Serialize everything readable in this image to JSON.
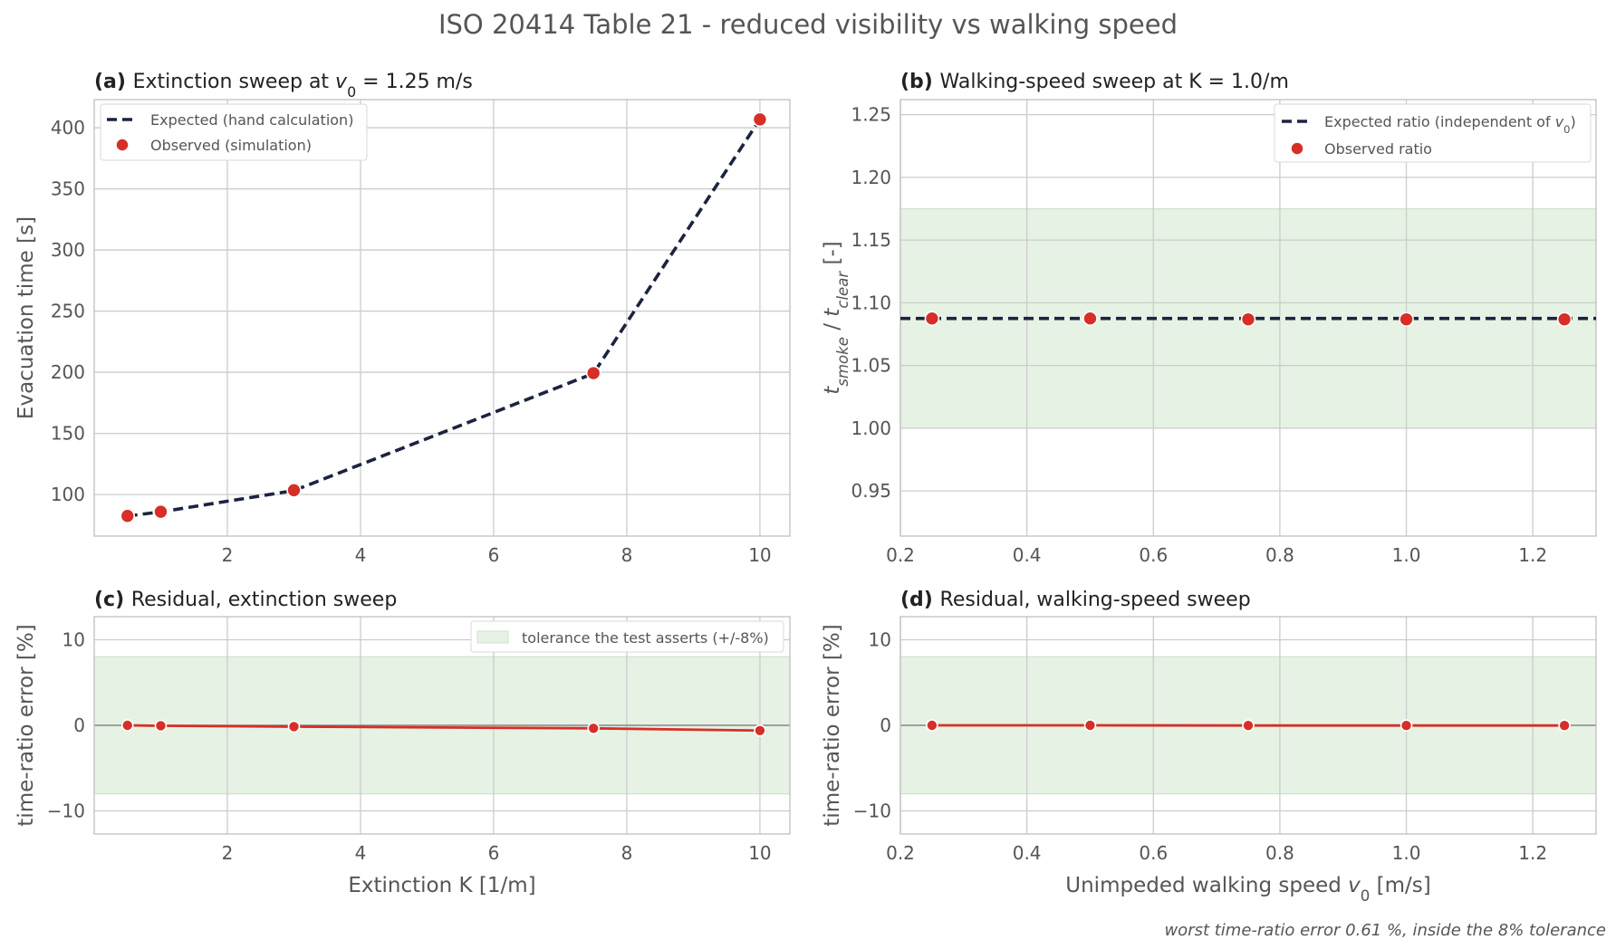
{
  "figure": {
    "title": "ISO 20414 Table 21 - reduced visibility vs walking speed",
    "footnote": "worst time-ratio error 0.61 %, inside the 8% tolerance"
  },
  "colors": {
    "expected": "#1c2340",
    "observed": "#d62f27",
    "band": "#e6f2e4",
    "band_edge": "#cfe3cb",
    "grid": "#cccccc",
    "zero_line": "#888888"
  },
  "chart_data": [
    {
      "id": "a",
      "type": "line",
      "title_prefix": "(a)",
      "title_parts": [
        "Extinction sweep at ",
        "v",
        "0",
        " = 1.25 m/s"
      ],
      "xlabel": "",
      "ylabel": "Evacuation time [s]",
      "xlim": [
        0,
        10.45
      ],
      "ylim": [
        66,
        423
      ],
      "xticks": [
        2,
        4,
        6,
        8,
        10
      ],
      "yticks": [
        100,
        150,
        200,
        250,
        300,
        350,
        400
      ],
      "grid": true,
      "legend_position": "top-left",
      "series": [
        {
          "name": "Expected (hand calculation)",
          "style": "dashed-line",
          "x": [
            0.5,
            1.0,
            3.0,
            7.5,
            10.0
          ],
          "y": [
            82.4,
            85.8,
            103.2,
            199.0,
            407.0
          ]
        },
        {
          "name": "Observed (simulation)",
          "style": "markers",
          "x": [
            0.5,
            1.0,
            3.0,
            7.5,
            10.0
          ],
          "y": [
            82.5,
            85.9,
            103.5,
            199.3,
            406.8
          ]
        }
      ]
    },
    {
      "id": "b",
      "type": "line",
      "title_prefix": "(b)",
      "title_parts": [
        "Walking-speed sweep at K = 1.0/m"
      ],
      "xlabel": "",
      "ylabel_parts": [
        "t",
        "smoke",
        " / ",
        "t",
        "clear",
        "  [-]"
      ],
      "xlim": [
        0.2,
        1.3
      ],
      "ylim": [
        0.914,
        1.262
      ],
      "xticks": [
        0.2,
        0.4,
        0.6,
        0.8,
        1.0,
        1.2
      ],
      "yticks": [
        0.95,
        1.0,
        1.05,
        1.1,
        1.15,
        1.2,
        1.25
      ],
      "grid": true,
      "legend_position": "top-right",
      "band": [
        1.0,
        1.175
      ],
      "series": [
        {
          "name_parts": [
            "Expected ratio (independent of ",
            "v",
            "0",
            ")"
          ],
          "style": "dashed-line",
          "x": [
            0.2,
            1.3
          ],
          "y": [
            1.0875,
            1.0875
          ]
        },
        {
          "name": "Observed ratio",
          "style": "markers",
          "x": [
            0.25,
            0.5,
            0.75,
            1.0,
            1.25
          ],
          "y": [
            1.0875,
            1.0875,
            1.0868,
            1.0868,
            1.0868
          ]
        }
      ]
    },
    {
      "id": "c",
      "type": "line",
      "title_prefix": "(c)",
      "title_parts": [
        "Residual, extinction sweep"
      ],
      "xlabel": "Extinction K [1/m]",
      "ylabel": "time-ratio error [%]",
      "xlim": [
        0,
        10.45
      ],
      "ylim": [
        -12.7,
        12.7
      ],
      "xticks": [
        2,
        4,
        6,
        8,
        10
      ],
      "yticks": [
        -10,
        0,
        10
      ],
      "grid": true,
      "legend_position": "top-right",
      "band": [
        -8,
        8
      ],
      "band_label": "tolerance the test asserts (+/-8%)",
      "series": [
        {
          "name": "residual",
          "style": "line-markers",
          "x": [
            0.5,
            1.0,
            3.0,
            7.5,
            10.0
          ],
          "y": [
            0.0,
            -0.05,
            -0.15,
            -0.35,
            -0.61
          ]
        }
      ]
    },
    {
      "id": "d",
      "type": "line",
      "title_prefix": "(d)",
      "title_parts": [
        "Residual, walking-speed sweep"
      ],
      "xlabel_parts": [
        "Unimpeded walking speed ",
        "v",
        "0",
        " [m/s]"
      ],
      "ylabel": "time-ratio error [%]",
      "xlim": [
        0.2,
        1.3
      ],
      "ylim": [
        -12.7,
        12.7
      ],
      "xticks": [
        0.2,
        0.4,
        0.6,
        0.8,
        1.0,
        1.2
      ],
      "yticks": [
        -10,
        0,
        10
      ],
      "grid": true,
      "band": [
        -8,
        8
      ],
      "series": [
        {
          "name": "residual",
          "style": "line-markers",
          "x": [
            0.25,
            0.5,
            0.75,
            1.0,
            1.25
          ],
          "y": [
            0.0,
            0.0,
            -0.02,
            -0.02,
            -0.02
          ]
        }
      ]
    }
  ]
}
